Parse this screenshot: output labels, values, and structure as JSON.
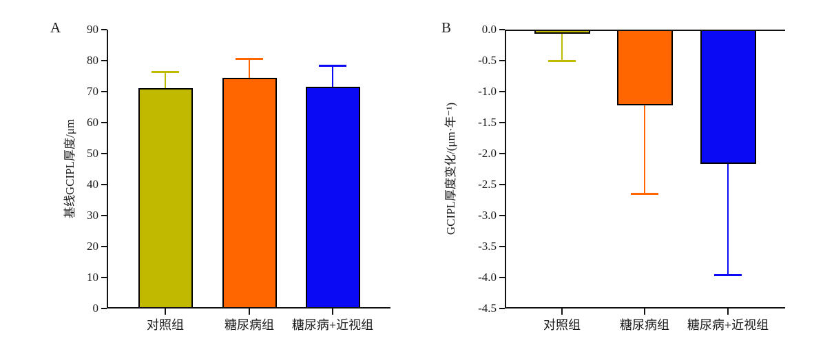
{
  "figure": {
    "background": "#ffffff",
    "axis_color": "#111111"
  },
  "colors": {
    "olive": "#C1B800",
    "orange": "#FF6600",
    "blue": "#0A0AF5",
    "bar_border": "#000000"
  },
  "chart_data": [
    {
      "type": "bar",
      "panel_label": "A",
      "title": "",
      "xlabel": "",
      "ylabel": "基线GCIPL厚度/μm",
      "categories": [
        "对照组",
        "糖尿病组",
        "糖尿病+近视组"
      ],
      "values": [
        71.1,
        74.4,
        71.5
      ],
      "error_tips": [
        76.5,
        80.6,
        78.4
      ],
      "ylim": [
        0,
        90
      ],
      "ytick_values": [
        0,
        10,
        20,
        30,
        40,
        50,
        60,
        70,
        80,
        90
      ],
      "ytick_labels": [
        "0",
        "10",
        "20",
        "30",
        "40",
        "50",
        "60",
        "70",
        "80",
        "90"
      ],
      "bar_colors": [
        "#C1B800",
        "#FF6600",
        "#0A0AF5"
      ],
      "bar_direction": "up",
      "grid": false,
      "legend": "none"
    },
    {
      "type": "bar",
      "panel_label": "B",
      "title": "",
      "xlabel": "",
      "ylabel": "GCIPL厚度变化/(μm·年⁻¹)",
      "categories": [
        "对照组",
        "糖尿病组",
        "糖尿病+近视组"
      ],
      "values": [
        -0.07,
        -1.22,
        -2.17
      ],
      "error_tips": [
        -0.5,
        -2.64,
        -3.95
      ],
      "ylim": [
        -4.5,
        0
      ],
      "ytick_values": [
        0,
        -0.5,
        -1.0,
        -1.5,
        -2.0,
        -2.5,
        -3.0,
        -3.5,
        -4.0,
        -4.5
      ],
      "ytick_labels": [
        "0.0",
        "-0.5",
        "-1.0",
        "-1.5",
        "-2.0",
        "-2.5",
        "-3.0",
        "-3.5",
        "-4.0",
        "-4.5"
      ],
      "bar_colors": [
        "#C1B800",
        "#FF6600",
        "#0A0AF5"
      ],
      "bar_direction": "down",
      "grid": false,
      "legend": "none"
    }
  ]
}
